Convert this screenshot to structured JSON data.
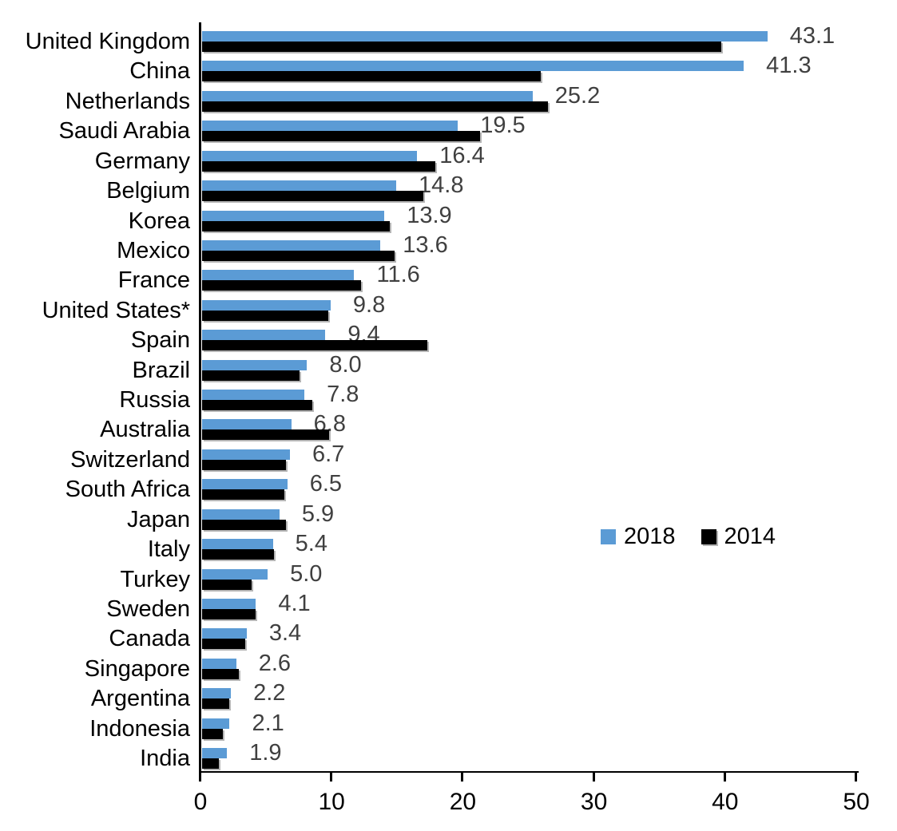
{
  "chart_data": {
    "type": "bar",
    "orientation": "horizontal",
    "title": "",
    "xlabel": "",
    "ylabel": "",
    "xlim": [
      0,
      50
    ],
    "xticks": [
      0,
      10,
      20,
      30,
      40,
      50
    ],
    "xtick_labels": [
      "0",
      "10",
      "20",
      "30",
      "40",
      "50"
    ],
    "grid": false,
    "legend_position": "middle-right",
    "categories": [
      "United Kingdom",
      "China",
      "Netherlands",
      "Saudi Arabia",
      "Germany",
      "Belgium",
      "Korea",
      "Mexico",
      "France",
      "United States*",
      "Spain",
      "Brazil",
      "Russia",
      "Australia",
      "Switzerland",
      "South Africa",
      "Japan",
      "Italy",
      "Turkey",
      "Sweden",
      "Canada",
      "Singapore",
      "Argentina",
      "Indonesia",
      "India"
    ],
    "series": [
      {
        "name": "2018",
        "color": "#5B9BD5",
        "values": [
          43.1,
          41.3,
          25.2,
          19.5,
          16.4,
          14.8,
          13.9,
          13.6,
          11.6,
          9.8,
          9.4,
          8.0,
          7.8,
          6.8,
          6.7,
          6.5,
          5.9,
          5.4,
          5.0,
          4.1,
          3.4,
          2.6,
          2.2,
          2.1,
          1.9
        ]
      },
      {
        "name": "2014",
        "color": "#000000",
        "values": [
          39.6,
          25.8,
          26.4,
          21.2,
          17.8,
          16.9,
          14.3,
          14.7,
          12.1,
          9.6,
          17.2,
          7.4,
          8.4,
          9.7,
          6.4,
          6.3,
          6.4,
          5.5,
          3.8,
          4.1,
          3.3,
          2.8,
          2.1,
          1.6,
          1.3
        ]
      }
    ],
    "labels_2018": [
      "43.1",
      "41.3",
      "25.2",
      "19.5",
      "16.4",
      "14.8",
      "13.9",
      "13.6",
      "11.6",
      "9.8",
      "9.4",
      "8.0",
      "7.8",
      "6.8",
      "6.7",
      "6.5",
      "5.9",
      "5.4",
      "5.0",
      "4.1",
      "3.4",
      "2.6",
      "2.2",
      "2.1",
      "1.9"
    ],
    "data_label_color": "#404040"
  },
  "legend": {
    "items": [
      {
        "label": "2018",
        "color": "#5B9BD5"
      },
      {
        "label": "2014",
        "color": "#000000"
      }
    ]
  }
}
